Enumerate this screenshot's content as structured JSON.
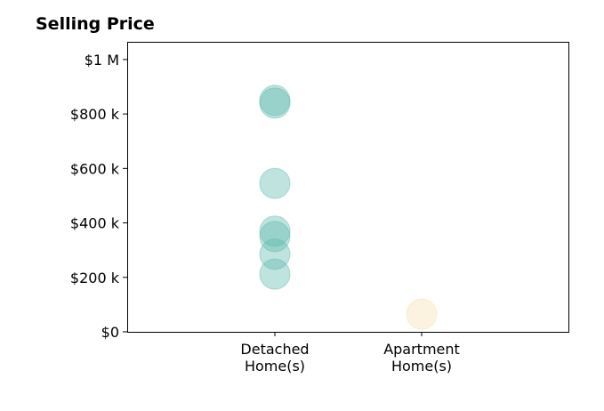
{
  "chart_data": {
    "type": "scatter",
    "title": "Selling Price",
    "xlabel": "",
    "ylabel": "",
    "categories": [
      "Detached\nHome(s)",
      "Apartment\nHome(s)"
    ],
    "y_ticks": [
      {
        "value": 0,
        "label": "$0"
      },
      {
        "value": 200000,
        "label": "$200 k"
      },
      {
        "value": 400000,
        "label": "$400 k"
      },
      {
        "value": 600000,
        "label": "$600 k"
      },
      {
        "value": 800000,
        "label": "$800 k"
      },
      {
        "value": 1000000,
        "label": "$1 M"
      }
    ],
    "ylim": [
      0,
      1065000
    ],
    "grid": false,
    "series": [
      {
        "category": "Detached\nHome(s)",
        "color": "#5fb8ad",
        "values": [
          850000,
          840000,
          545000,
          370000,
          350000,
          285000,
          212000
        ]
      },
      {
        "category": "Apartment\nHome(s)",
        "color": "#f5deb0",
        "values": [
          65000
        ]
      }
    ]
  }
}
